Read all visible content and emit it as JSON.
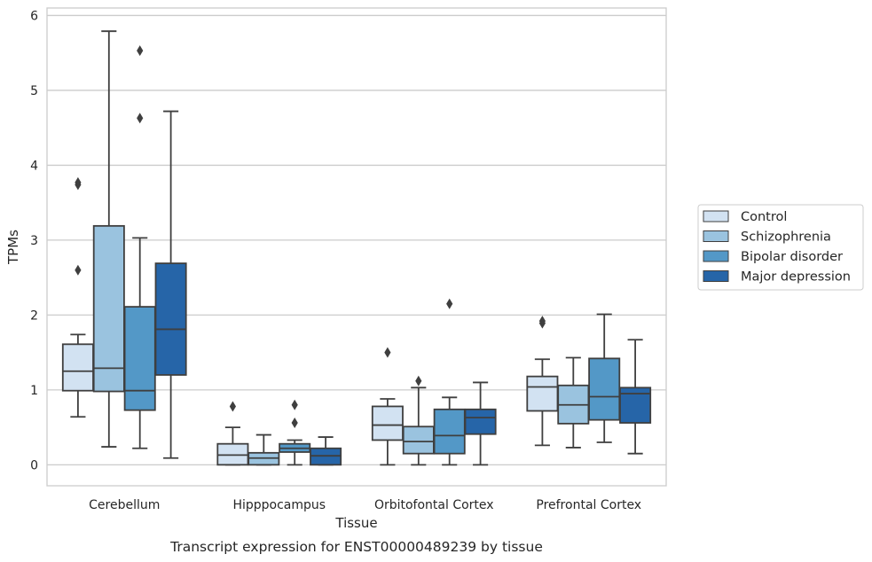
{
  "caption": "Transcript expression for ENST00000489239 by tissue",
  "chart_data": {
    "type": "box",
    "xlabel": "Tissue",
    "ylabel": "TPMs",
    "ylim": [
      -0.28,
      6.1
    ],
    "yticks": [
      0,
      1,
      2,
      3,
      4,
      5,
      6
    ],
    "grid": "horizontal",
    "legend_position": "center-right",
    "categories": [
      "Cerebellum",
      "Hipppocampus",
      "Orbitofontal Cortex",
      "Prefrontal Cortex"
    ],
    "series": [
      {
        "name": "Control",
        "color": "#d2e2f2",
        "boxes": [
          {
            "whislo": 0.64,
            "q1": 0.99,
            "med": 1.25,
            "q3": 1.61,
            "whishi": 1.74,
            "fliers": [
              3.74,
              3.77,
              2.6
            ]
          },
          {
            "whislo": 0.0,
            "q1": 0.0,
            "med": 0.13,
            "q3": 0.28,
            "whishi": 0.5,
            "fliers": [
              0.78
            ]
          },
          {
            "whislo": 0.0,
            "q1": 0.33,
            "med": 0.53,
            "q3": 0.78,
            "whishi": 0.88,
            "fliers": [
              1.5
            ]
          },
          {
            "whislo": 0.26,
            "q1": 0.72,
            "med": 1.04,
            "q3": 1.18,
            "whishi": 1.41,
            "fliers": [
              1.89,
              1.92
            ]
          }
        ]
      },
      {
        "name": "Schizophrenia",
        "color": "#9ac3df",
        "boxes": [
          {
            "whislo": 0.24,
            "q1": 0.98,
            "med": 1.29,
            "q3": 3.19,
            "whishi": 5.79,
            "fliers": []
          },
          {
            "whislo": 0.0,
            "q1": 0.0,
            "med": 0.09,
            "q3": 0.16,
            "whishi": 0.4,
            "fliers": []
          },
          {
            "whislo": 0.0,
            "q1": 0.15,
            "med": 0.31,
            "q3": 0.51,
            "whishi": 1.03,
            "fliers": [
              1.12
            ]
          },
          {
            "whislo": 0.23,
            "q1": 0.55,
            "med": 0.8,
            "q3": 1.06,
            "whishi": 1.43,
            "fliers": []
          }
        ]
      },
      {
        "name": "Bipolar disorder",
        "color": "#5398c7",
        "boxes": [
          {
            "whislo": 0.22,
            "q1": 0.73,
            "med": 0.99,
            "q3": 2.11,
            "whishi": 3.03,
            "fliers": [
              5.53,
              4.63
            ]
          },
          {
            "whislo": 0.0,
            "q1": 0.17,
            "med": 0.22,
            "q3": 0.28,
            "whishi": 0.33,
            "fliers": [
              0.8,
              0.56
            ]
          },
          {
            "whislo": 0.0,
            "q1": 0.15,
            "med": 0.39,
            "q3": 0.74,
            "whishi": 0.9,
            "fliers": [
              2.15
            ]
          },
          {
            "whislo": 0.3,
            "q1": 0.6,
            "med": 0.91,
            "q3": 1.42,
            "whishi": 2.01,
            "fliers": []
          }
        ]
      },
      {
        "name": "Major depression",
        "color": "#2665a8",
        "boxes": [
          {
            "whislo": 0.09,
            "q1": 1.2,
            "med": 1.81,
            "q3": 2.69,
            "whishi": 4.72,
            "fliers": []
          },
          {
            "whislo": 0.0,
            "q1": 0.0,
            "med": 0.12,
            "q3": 0.22,
            "whishi": 0.37,
            "fliers": []
          },
          {
            "whislo": 0.0,
            "q1": 0.41,
            "med": 0.63,
            "q3": 0.74,
            "whishi": 1.1,
            "fliers": []
          },
          {
            "whislo": 0.15,
            "q1": 0.56,
            "med": 0.95,
            "q3": 1.03,
            "whishi": 1.67,
            "fliers": []
          }
        ]
      }
    ]
  }
}
